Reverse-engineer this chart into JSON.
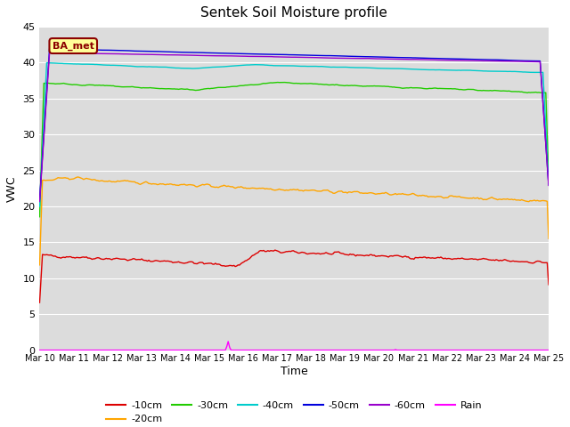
{
  "title": "Sentek Soil Moisture profile",
  "xlabel": "Time",
  "ylabel": "VWC",
  "station_label": "BA_met",
  "ylim": [
    0,
    45
  ],
  "yticks": [
    0,
    5,
    10,
    15,
    20,
    25,
    30,
    35,
    40,
    45
  ],
  "x_tick_labels": [
    "Mar 10",
    "Mar 11",
    "Mar 12",
    "Mar 13",
    "Mar 14",
    "Mar 15",
    "Mar 16",
    "Mar 17",
    "Mar 18",
    "Mar 19",
    "Mar 20",
    "Mar 21",
    "Mar 22",
    "Mar 23",
    "Mar 24",
    "Mar 25"
  ],
  "bg_color": "#dcdcdc",
  "fig_bg": "#ffffff",
  "grid_color": "#ffffff",
  "series": {
    "-10cm": {
      "color": "#dd0000",
      "lw": 1.0
    },
    "-20cm": {
      "color": "#ffa500",
      "lw": 1.0
    },
    "-30cm": {
      "color": "#22cc00",
      "lw": 1.0
    },
    "-40cm": {
      "color": "#00cccc",
      "lw": 1.0
    },
    "-50cm": {
      "color": "#0000dd",
      "lw": 1.0
    },
    "-60cm": {
      "color": "#9900cc",
      "lw": 1.0
    },
    "Rain": {
      "color": "#ff00ff",
      "lw": 1.0
    }
  }
}
